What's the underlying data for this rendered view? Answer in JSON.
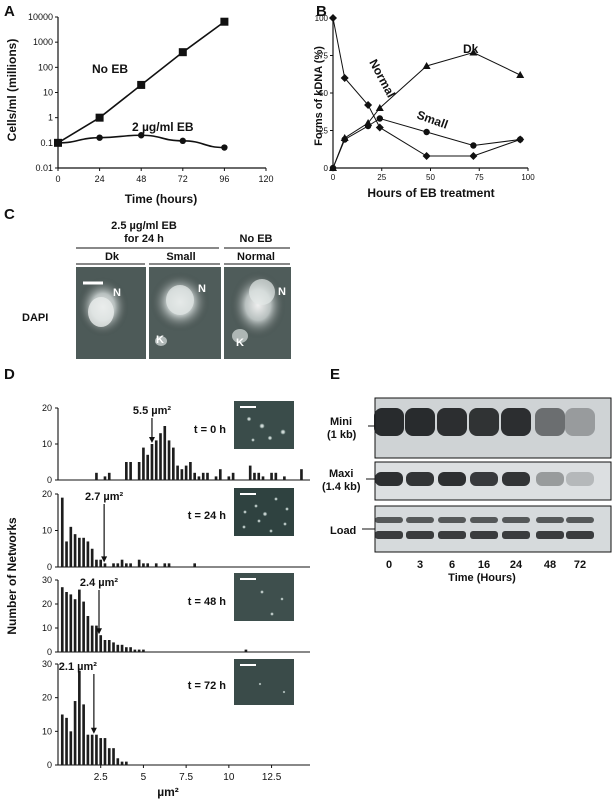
{
  "figure": {
    "panels": {
      "A": {
        "letter": "A",
        "legend_no_eb": "No EB",
        "legend_eb": "2 µg/ml EB"
      },
      "B": {
        "letter": "B",
        "label_dk": "Dk",
        "label_normal": "Normal",
        "label_small": "Small"
      },
      "C": {
        "letter": "C",
        "header_treated": [
          "2.5 µg/ml EB",
          "for 24 h"
        ],
        "header_untreated": "No EB",
        "row_label": "DAPI",
        "columns": [
          "Dk",
          "Small",
          "Normal"
        ],
        "labels": [
          [
            "N"
          ],
          [
            "N",
            "K"
          ],
          [
            "N",
            "K"
          ]
        ]
      },
      "D": {
        "letter": "D",
        "ylabel": "Number of Networks"
      },
      "E": {
        "letter": "E",
        "rows": [
          "Mini",
          "(1 kb)",
          "Maxi",
          "(1.4 kb)",
          "Load"
        ],
        "lanes": [
          "0",
          "3",
          "6",
          "16",
          "24",
          "48",
          "72"
        ],
        "xlabel": "Time (Hours)"
      }
    }
  },
  "chart_data": [
    {
      "type": "line",
      "panel": "A",
      "xlabel": "Time (hours)",
      "ylabel": "Cells/ml (millions)",
      "xlim": [
        0,
        120
      ],
      "ylim": [
        0.01,
        10000
      ],
      "yscale": "log",
      "xticks": [
        "0",
        "24",
        "48",
        "72",
        "96",
        "120"
      ],
      "yticks": [
        "0.01",
        "0.1",
        "1",
        "10",
        "100",
        "1000",
        "10000"
      ],
      "series": [
        {
          "name": "No EB",
          "marker": "square",
          "x": [
            0,
            24,
            48,
            72,
            96
          ],
          "y": [
            0.1,
            1,
            20,
            400,
            6500
          ]
        },
        {
          "name": "2 µg/ml EB",
          "marker": "circle",
          "x": [
            0,
            24,
            48,
            72,
            96
          ],
          "y": [
            0.1,
            0.16,
            0.2,
            0.12,
            0.065
          ]
        }
      ]
    },
    {
      "type": "line",
      "panel": "B",
      "xlabel": "Hours of EB treatment",
      "ylabel": "Forms of kDNA (%)",
      "xlim": [
        0,
        100
      ],
      "ylim": [
        0,
        100
      ],
      "xticks": [
        "0",
        "25",
        "50",
        "75",
        "100"
      ],
      "yticks": [
        "0",
        "25",
        "50",
        "75",
        "100"
      ],
      "series": [
        {
          "name": "Dk",
          "marker": "triangle",
          "x": [
            0,
            6,
            18,
            24,
            48,
            72,
            96
          ],
          "y": [
            0,
            20,
            30,
            40,
            68,
            77,
            62
          ]
        },
        {
          "name": "Normal",
          "marker": "diamond",
          "x": [
            0,
            6,
            18,
            24,
            48,
            72,
            96
          ],
          "y": [
            100,
            60,
            42,
            27,
            8,
            8,
            19
          ]
        },
        {
          "name": "Small",
          "marker": "circle",
          "x": [
            0,
            6,
            18,
            24,
            48,
            72,
            96
          ],
          "y": [
            0,
            19,
            28,
            33,
            24,
            15,
            19
          ]
        }
      ]
    },
    {
      "type": "bar",
      "panel": "D",
      "title": "t = 0 h",
      "annotation": "5.5 µm²",
      "annotation_x": 5.5,
      "bin_width": 0.25,
      "x_start": 0.25,
      "xlim": [
        0,
        14.75
      ],
      "ylim": [
        0,
        20
      ],
      "yticks": [
        "0",
        "10",
        "20"
      ],
      "values": [
        0,
        0,
        0,
        0,
        0,
        0,
        0,
        0,
        2,
        0,
        1,
        2,
        0,
        0,
        0,
        5,
        5,
        0,
        5,
        9,
        7,
        10,
        11,
        13,
        15,
        11,
        9,
        4,
        3,
        4,
        5,
        2,
        1,
        2,
        2,
        0,
        1,
        3,
        0,
        1,
        2,
        0,
        0,
        0,
        4,
        2,
        2,
        1,
        0,
        2,
        2,
        0,
        1,
        0,
        0,
        0,
        3
      ]
    },
    {
      "type": "bar",
      "panel": "D",
      "title": "t = 24 h",
      "annotation": "2.7 µm²",
      "annotation_x": 2.7,
      "bin_width": 0.25,
      "x_start": 0.25,
      "xlim": [
        0,
        14.75
      ],
      "ylim": [
        0,
        20
      ],
      "yticks": [
        "0",
        "10",
        "20"
      ],
      "values": [
        19,
        7,
        11,
        9,
        8,
        8,
        7,
        5,
        2,
        2,
        1,
        0,
        1,
        1,
        2,
        1,
        1,
        0,
        2,
        1,
        1,
        0,
        1,
        0,
        1,
        1,
        0,
        0,
        0,
        0,
        0,
        1
      ]
    },
    {
      "type": "bar",
      "panel": "D",
      "title": "t = 48 h",
      "annotation": "2.4 µm²",
      "annotation_x": 2.4,
      "bin_width": 0.25,
      "x_start": 0.25,
      "xlim": [
        0,
        14.75
      ],
      "ylim": [
        0,
        30
      ],
      "yticks": [
        "0",
        "10",
        "20",
        "30"
      ],
      "values": [
        27,
        25,
        24,
        22,
        26,
        21,
        15,
        11,
        11,
        7,
        5,
        5,
        4,
        3,
        3,
        2,
        2,
        1,
        1,
        1,
        0,
        0,
        0,
        0,
        0,
        0,
        0,
        0,
        0,
        0,
        0,
        0,
        0,
        0,
        0,
        0,
        0,
        0,
        0,
        0,
        0,
        0,
        0,
        1
      ]
    },
    {
      "type": "bar",
      "panel": "D",
      "title": "t = 72 h",
      "annotation": "2.1 µm²",
      "annotation_x": 2.1,
      "bin_width": 0.25,
      "x_start": 0.25,
      "xlim": [
        0,
        14.75
      ],
      "ylim": [
        0,
        30
      ],
      "yticks": [
        "0",
        "10",
        "20",
        "30"
      ],
      "xticks": [
        "2.5",
        "5",
        "7.5",
        "10",
        "12.5"
      ],
      "xlabel": "µm²",
      "values": [
        15,
        14,
        10,
        19,
        28,
        18,
        9,
        9,
        9,
        8,
        8,
        5,
        5,
        2,
        1,
        1,
        0
      ]
    }
  ]
}
